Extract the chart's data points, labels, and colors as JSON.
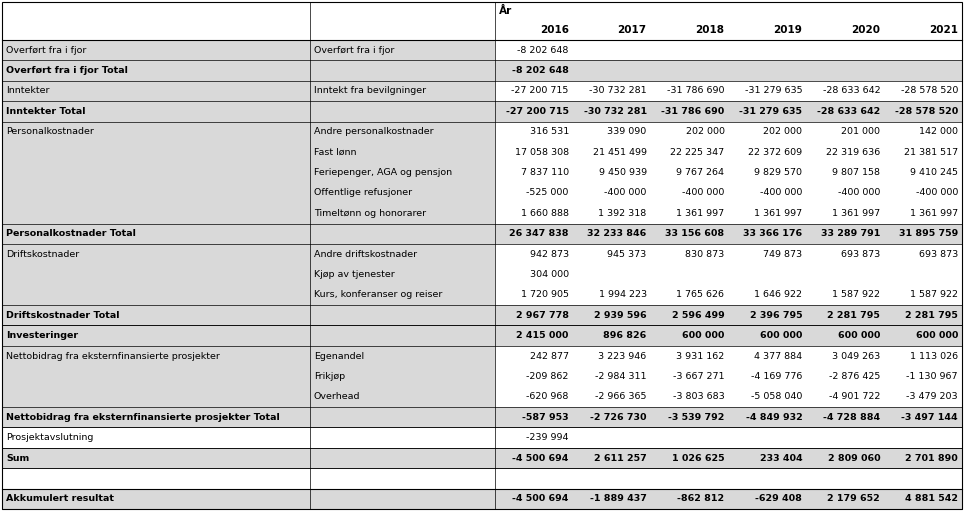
{
  "rows": [
    {
      "label": "Overført fra i fjor",
      "sub": "Overført fra i fjor",
      "vals": [
        "-8 202 648",
        "",
        "",
        "",
        "",
        ""
      ],
      "type": "data"
    },
    {
      "label": "Overført fra i fjor Total",
      "sub": "",
      "vals": [
        "-8 202 648",
        "",
        "",
        "",
        "",
        ""
      ],
      "type": "total"
    },
    {
      "label": "Inntekter",
      "sub": "Inntekt fra bevilgninger",
      "vals": [
        "-27 200 715",
        "-30 732 281",
        "-31 786 690",
        "-31 279 635",
        "-28 633 642",
        "-28 578 520"
      ],
      "type": "data"
    },
    {
      "label": "Inntekter Total",
      "sub": "",
      "vals": [
        "-27 200 715",
        "-30 732 281",
        "-31 786 690",
        "-31 279 635",
        "-28 633 642",
        "-28 578 520"
      ],
      "type": "total"
    },
    {
      "label": "Personalkostnader",
      "sub": "Andre personalkostnader",
      "vals": [
        "316 531",
        "339 090",
        "202 000",
        "202 000",
        "201 000",
        "142 000"
      ],
      "type": "data"
    },
    {
      "label": "",
      "sub": "Fast lønn",
      "vals": [
        "17 058 308",
        "21 451 499",
        "22 225 347",
        "22 372 609",
        "22 319 636",
        "21 381 517"
      ],
      "type": "data"
    },
    {
      "label": "",
      "sub": "Feriepenger, AGA og pensjon",
      "vals": [
        "7 837 110",
        "9 450 939",
        "9 767 264",
        "9 829 570",
        "9 807 158",
        "9 410 245"
      ],
      "type": "data"
    },
    {
      "label": "",
      "sub": "Offentlige refusjoner",
      "vals": [
        "-525 000",
        "-400 000",
        "-400 000",
        "-400 000",
        "-400 000",
        "-400 000"
      ],
      "type": "data"
    },
    {
      "label": "",
      "sub": "Timeltønn og honorarer",
      "vals": [
        "1 660 888",
        "1 392 318",
        "1 361 997",
        "1 361 997",
        "1 361 997",
        "1 361 997"
      ],
      "type": "data"
    },
    {
      "label": "Personalkostnader Total",
      "sub": "",
      "vals": [
        "26 347 838",
        "32 233 846",
        "33 156 608",
        "33 366 176",
        "33 289 791",
        "31 895 759"
      ],
      "type": "total"
    },
    {
      "label": "Driftskostnader",
      "sub": "Andre driftskostnader",
      "vals": [
        "942 873",
        "945 373",
        "830 873",
        "749 873",
        "693 873",
        "693 873"
      ],
      "type": "data"
    },
    {
      "label": "",
      "sub": "Kjøp av tjenester",
      "vals": [
        "304 000",
        "",
        "",
        "",
        "",
        ""
      ],
      "type": "data"
    },
    {
      "label": "",
      "sub": "Kurs, konferanser og reiser",
      "vals": [
        "1 720 905",
        "1 994 223",
        "1 765 626",
        "1 646 922",
        "1 587 922",
        "1 587 922"
      ],
      "type": "data"
    },
    {
      "label": "Driftskostnader Total",
      "sub": "",
      "vals": [
        "2 967 778",
        "2 939 596",
        "2 596 499",
        "2 396 795",
        "2 281 795",
        "2 281 795"
      ],
      "type": "total"
    },
    {
      "label": "Investeringer",
      "sub": "",
      "vals": [
        "2 415 000",
        "896 826",
        "600 000",
        "600 000",
        "600 000",
        "600 000"
      ],
      "type": "total"
    },
    {
      "label": "Nettobidrag fra eksternfinansierte prosjekter",
      "sub": "Egenandel",
      "vals": [
        "242 877",
        "3 223 946",
        "3 931 162",
        "4 377 884",
        "3 049 263",
        "1 113 026"
      ],
      "type": "data"
    },
    {
      "label": "",
      "sub": "Frikjøp",
      "vals": [
        "-209 862",
        "-2 984 311",
        "-3 667 271",
        "-4 169 776",
        "-2 876 425",
        "-1 130 967"
      ],
      "type": "data"
    },
    {
      "label": "",
      "sub": "Overhead",
      "vals": [
        "-620 968",
        "-2 966 365",
        "-3 803 683",
        "-5 058 040",
        "-4 901 722",
        "-3 479 203"
      ],
      "type": "data"
    },
    {
      "label": "Nettobidrag fra eksternfinansierte prosjekter Total",
      "sub": "",
      "vals": [
        "-587 953",
        "-2 726 730",
        "-3 539 792",
        "-4 849 932",
        "-4 728 884",
        "-3 497 144"
      ],
      "type": "total"
    },
    {
      "label": "Prosjektavslutning",
      "sub": "",
      "vals": [
        "-239 994",
        "",
        "",
        "",
        "",
        ""
      ],
      "type": "plain"
    },
    {
      "label": "Sum",
      "sub": "",
      "vals": [
        "-4 500 694",
        "2 611 257",
        "1 026 625",
        "233 404",
        "2 809 060",
        "2 701 890"
      ],
      "type": "total"
    },
    {
      "label": "",
      "sub": "",
      "vals": [
        "",
        "",
        "",
        "",
        "",
        ""
      ],
      "type": "empty"
    },
    {
      "label": "Akkumulert resultat",
      "sub": "",
      "vals": [
        "-4 500 694",
        "-1 889 437",
        "-862 812",
        "-629 408",
        "2 179 652",
        "4 881 542"
      ],
      "type": "total"
    }
  ],
  "years": [
    "2016",
    "2017",
    "2018",
    "2019",
    "2020",
    "2021"
  ],
  "gray_bg": "#D9D9D9",
  "white_bg": "#FFFFFF",
  "border_color": "#000000",
  "text_color": "#000000",
  "font_size": 6.8,
  "font_size_header": 7.5
}
